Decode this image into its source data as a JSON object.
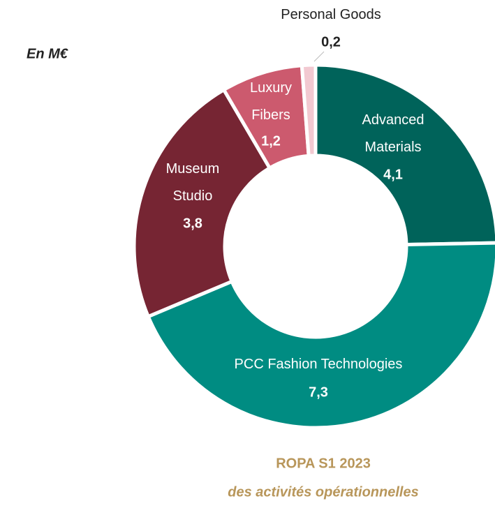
{
  "chart_data": {
    "type": "donut",
    "title": "ROPA S1 2023",
    "subtitle": "des activités opérationnelles",
    "unit_label": "En M€",
    "categories": [
      "Advanced Materials",
      "PCC Fashion Technologies",
      "Museum Studio",
      "Luxury Fibers",
      "Personal Goods"
    ],
    "values": [
      4.1,
      7.3,
      3.8,
      1.2,
      0.2
    ],
    "value_labels": [
      "4,1",
      "7,3",
      "3,8",
      "1,2",
      "0,2"
    ],
    "colors": [
      "#00635a",
      "#008c82",
      "#762533",
      "#cc5a6e",
      "#f2c9d1"
    ]
  }
}
